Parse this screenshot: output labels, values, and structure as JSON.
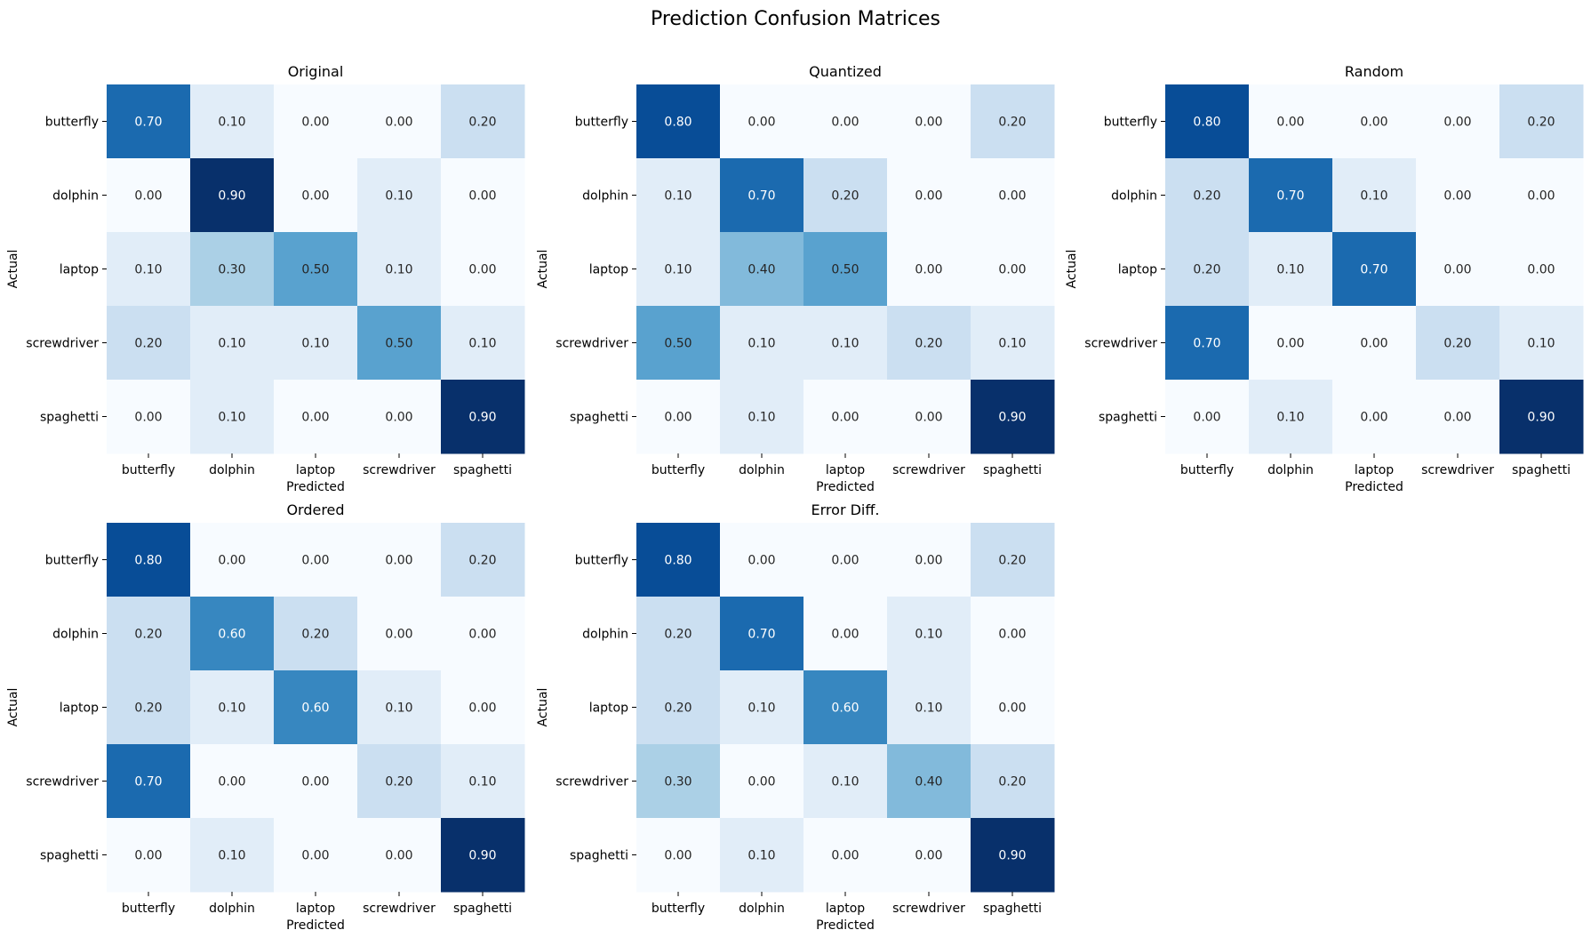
{
  "figure": {
    "title": "Prediction Confusion Matrices"
  },
  "colors": {
    "colormap": "Blues",
    "low": "#f7fbff",
    "high": "#08306b",
    "text_dark": "#262626",
    "text_light": "#ffffff"
  },
  "chart_data": [
    {
      "type": "heatmap",
      "title": "Original",
      "xlabel": "Predicted",
      "ylabel": "Actual",
      "x_categories": [
        "butterfly",
        "dolphin",
        "laptop",
        "screwdriver",
        "spaghetti"
      ],
      "y_categories": [
        "butterfly",
        "dolphin",
        "laptop",
        "screwdriver",
        "spaghetti"
      ],
      "values": [
        [
          0.7,
          0.1,
          0.0,
          0.0,
          0.2
        ],
        [
          0.0,
          0.9,
          0.0,
          0.1,
          0.0
        ],
        [
          0.1,
          0.3,
          0.5,
          0.1,
          0.0
        ],
        [
          0.2,
          0.1,
          0.1,
          0.5,
          0.1
        ],
        [
          0.0,
          0.1,
          0.0,
          0.0,
          0.9
        ]
      ],
      "vmin": 0.0,
      "vmax": 0.9,
      "value_format": "2f"
    },
    {
      "type": "heatmap",
      "title": "Quantized",
      "xlabel": "Predicted",
      "ylabel": "Actual",
      "x_categories": [
        "butterfly",
        "dolphin",
        "laptop",
        "screwdriver",
        "spaghetti"
      ],
      "y_categories": [
        "butterfly",
        "dolphin",
        "laptop",
        "screwdriver",
        "spaghetti"
      ],
      "values": [
        [
          0.8,
          0.0,
          0.0,
          0.0,
          0.2
        ],
        [
          0.1,
          0.7,
          0.2,
          0.0,
          0.0
        ],
        [
          0.1,
          0.4,
          0.5,
          0.0,
          0.0
        ],
        [
          0.5,
          0.1,
          0.1,
          0.2,
          0.1
        ],
        [
          0.0,
          0.1,
          0.0,
          0.0,
          0.9
        ]
      ],
      "vmin": 0.0,
      "vmax": 0.9,
      "value_format": "2f"
    },
    {
      "type": "heatmap",
      "title": "Random",
      "xlabel": "Predicted",
      "ylabel": "Actual",
      "x_categories": [
        "butterfly",
        "dolphin",
        "laptop",
        "screwdriver",
        "spaghetti"
      ],
      "y_categories": [
        "butterfly",
        "dolphin",
        "laptop",
        "screwdriver",
        "spaghetti"
      ],
      "values": [
        [
          0.8,
          0.0,
          0.0,
          0.0,
          0.2
        ],
        [
          0.2,
          0.7,
          0.1,
          0.0,
          0.0
        ],
        [
          0.2,
          0.1,
          0.7,
          0.0,
          0.0
        ],
        [
          0.7,
          0.0,
          0.0,
          0.2,
          0.1
        ],
        [
          0.0,
          0.1,
          0.0,
          0.0,
          0.9
        ]
      ],
      "vmin": 0.0,
      "vmax": 0.9,
      "value_format": "2f"
    },
    {
      "type": "heatmap",
      "title": "Ordered",
      "xlabel": "Predicted",
      "ylabel": "Actual",
      "x_categories": [
        "butterfly",
        "dolphin",
        "laptop",
        "screwdriver",
        "spaghetti"
      ],
      "y_categories": [
        "butterfly",
        "dolphin",
        "laptop",
        "screwdriver",
        "spaghetti"
      ],
      "values": [
        [
          0.8,
          0.0,
          0.0,
          0.0,
          0.2
        ],
        [
          0.2,
          0.6,
          0.2,
          0.0,
          0.0
        ],
        [
          0.2,
          0.1,
          0.6,
          0.1,
          0.0
        ],
        [
          0.7,
          0.0,
          0.0,
          0.2,
          0.1
        ],
        [
          0.0,
          0.1,
          0.0,
          0.0,
          0.9
        ]
      ],
      "vmin": 0.0,
      "vmax": 0.9,
      "value_format": "2f"
    },
    {
      "type": "heatmap",
      "title": "Error Diff.",
      "xlabel": "Predicted",
      "ylabel": "Actual",
      "x_categories": [
        "butterfly",
        "dolphin",
        "laptop",
        "screwdriver",
        "spaghetti"
      ],
      "y_categories": [
        "butterfly",
        "dolphin",
        "laptop",
        "screwdriver",
        "spaghetti"
      ],
      "values": [
        [
          0.8,
          0.0,
          0.0,
          0.0,
          0.2
        ],
        [
          0.2,
          0.7,
          0.0,
          0.1,
          0.0
        ],
        [
          0.2,
          0.1,
          0.6,
          0.1,
          0.0
        ],
        [
          0.3,
          0.0,
          0.1,
          0.4,
          0.2
        ],
        [
          0.0,
          0.1,
          0.0,
          0.0,
          0.9
        ]
      ],
      "vmin": 0.0,
      "vmax": 0.9,
      "value_format": "2f"
    }
  ]
}
